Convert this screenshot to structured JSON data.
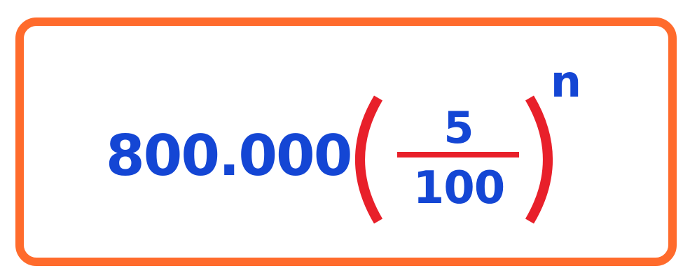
{
  "formula": {
    "coefficient": "800.000",
    "numerator": "5",
    "denominator": "100",
    "exponent": "n"
  },
  "colors": {
    "frame": "#FF6B2C",
    "text": "#1446D4",
    "accent": "#E8202A",
    "background": "#FFFFFF"
  }
}
